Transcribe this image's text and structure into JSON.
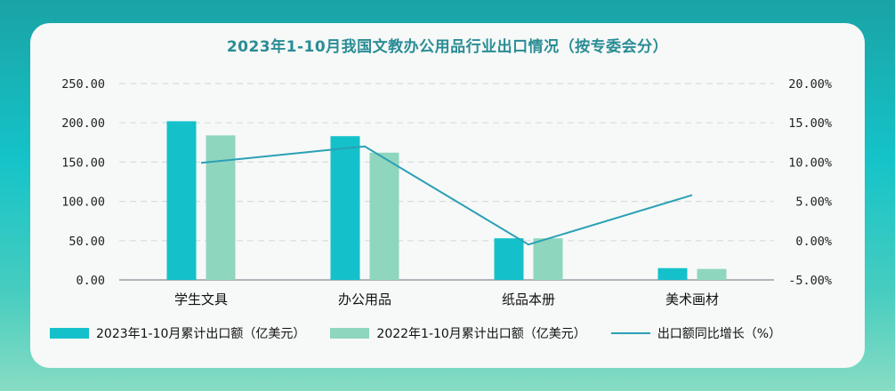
{
  "chart_data": {
    "type": "bar",
    "title": "2023年1-10月我国文教办公用品行业出口情况（按专委会分）",
    "categories": [
      "学生文具",
      "办公用品",
      "纸品本册",
      "美术画材"
    ],
    "series": [
      {
        "name": "2023年1-10月累计出口额（亿美元）",
        "type": "bar",
        "axis": "left",
        "color": "#14c1ca",
        "values": [
          202,
          183,
          53,
          15
        ]
      },
      {
        "name": "2022年1-10月累计出口额（亿美元）",
        "type": "bar",
        "axis": "left",
        "color": "#8fd6bf",
        "values": [
          184,
          162,
          53,
          14
        ]
      },
      {
        "name": "出口额同比增长（%）",
        "type": "line",
        "axis": "right",
        "color": "#2aa0b6",
        "values": [
          9.9,
          12.0,
          -0.5,
          5.8
        ]
      }
    ],
    "y_left": {
      "min": 0,
      "max": 250,
      "ticks": [
        "0.00",
        "50.00",
        "100.00",
        "150.00",
        "200.00",
        "250.00"
      ]
    },
    "y_right": {
      "min": -5,
      "max": 20,
      "ticks": [
        "-5.00%",
        "0.00%",
        "5.00%",
        "10.00%",
        "15.00%",
        "20.00%"
      ]
    },
    "grid": true,
    "legend_position": "bottom"
  }
}
